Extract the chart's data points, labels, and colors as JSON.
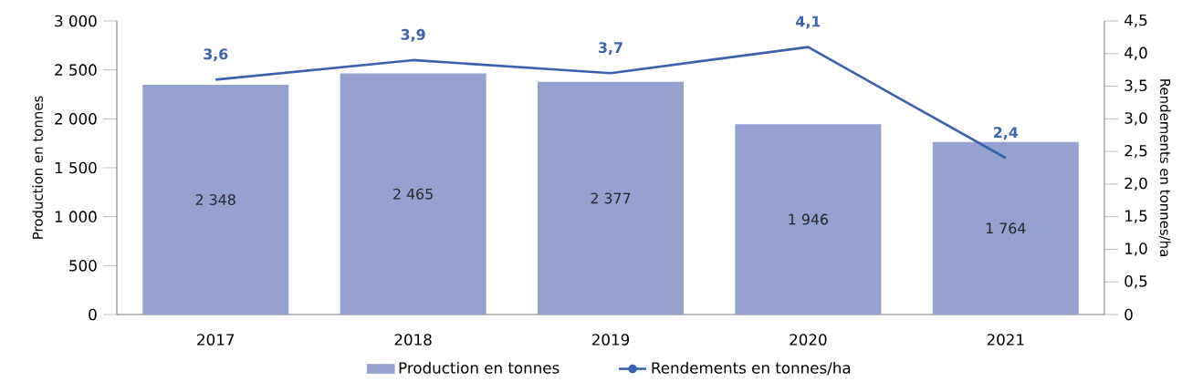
{
  "chart_data": {
    "type": "bar",
    "categories": [
      "2017",
      "2018",
      "2019",
      "2020",
      "2021"
    ],
    "series": [
      {
        "name": "Production en tonnes",
        "color": "#95a1d1",
        "values": [
          2348,
          2465,
          2377,
          1946,
          1764
        ],
        "value_labels": [
          "2 348",
          "2 465",
          "2 377",
          "1 946",
          "1 764"
        ]
      },
      {
        "name": "Rendements en tonnes/ha",
        "type": "line",
        "axis": "y2",
        "color": "#3a62b0",
        "values": [
          3.6,
          3.9,
          3.7,
          4.1,
          2.4
        ],
        "value_labels": [
          "3,6",
          "3,9",
          "3,7",
          "4,1",
          "2,4"
        ]
      }
    ],
    "ylabel": "Production en tonnes",
    "y2label": "Rendements en tonnes/ha",
    "ylim": [
      0,
      3000
    ],
    "yticks": [
      0,
      500,
      {
        "value": 1000,
        "label": "1 000"
      },
      {
        "value": 1500,
        "label": "1 500"
      },
      {
        "value": 2000,
        "label": "2 000"
      },
      {
        "value": 2500,
        "label": "2 500"
      },
      {
        "value": 3000,
        "label": "3 000"
      }
    ],
    "y2lim": [
      0,
      4.5
    ],
    "y2ticks": [
      0,
      {
        "value": 0.5,
        "label": "0,5"
      },
      {
        "value": 1.0,
        "label": "1,0"
      },
      {
        "value": 1.5,
        "label": "1,5"
      },
      {
        "value": 2.0,
        "label": "2,0"
      },
      {
        "value": 2.5,
        "label": "2,5"
      },
      {
        "value": 3.0,
        "label": "3,0"
      },
      {
        "value": 3.5,
        "label": "3,5"
      },
      {
        "value": 4.0,
        "label": "4,0"
      },
      {
        "value": 4.5,
        "label": "4,5"
      }
    ],
    "grid": false,
    "legend": "bottom"
  }
}
